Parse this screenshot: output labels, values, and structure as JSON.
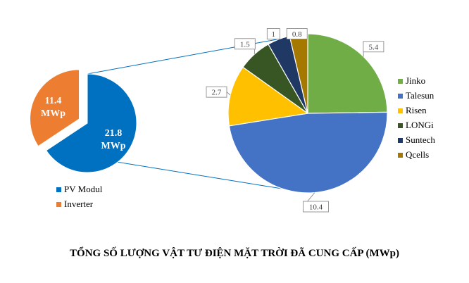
{
  "chart_data": [
    {
      "type": "pie",
      "slices": [
        {
          "label": "PV Modul",
          "value": 21.8,
          "display_value": "21.8",
          "unit": "MWp",
          "color": "#0070C0"
        },
        {
          "label": "Inverter",
          "value": 11.4,
          "display_value": "11.4",
          "unit": "MWp",
          "color": "#ED7D31"
        }
      ],
      "legend_position": "bottom-left"
    },
    {
      "type": "pie",
      "slices": [
        {
          "label": "Jinko",
          "value": 5.4,
          "display_value": "5.4",
          "color": "#70AD47"
        },
        {
          "label": "Talesun",
          "value": 10.4,
          "display_value": "10.4",
          "color": "#4472C4"
        },
        {
          "label": "Risen",
          "value": 2.7,
          "display_value": "2.7",
          "color": "#FFC000"
        },
        {
          "label": "LONGi",
          "value": 1.5,
          "display_value": "1.5",
          "color": "#375623"
        },
        {
          "label": "Suntech",
          "value": 1,
          "display_value": "1",
          "color": "#203864"
        },
        {
          "label": "Qcells",
          "value": 0.8,
          "display_value": "0.8",
          "color": "#A57900"
        }
      ],
      "legend_position": "right"
    }
  ],
  "caption": "TỔNG SỐ LƯỢNG VẬT TƯ ĐIỆN MẶT TRỜI ĐÃ CUNG CẤP (MWp)"
}
